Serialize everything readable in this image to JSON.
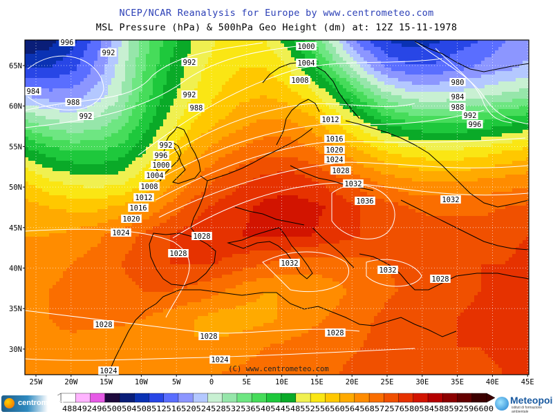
{
  "header": {
    "title": "NCEP/NCAR Reanalysis for Europe by www.centrometeo.com",
    "subtitle": "MSL Pressure (hPa) & 500hPa Geo Height (dm) at: 12Z 15-11-1978"
  },
  "map": {
    "lat_labels": [
      "65N",
      "60N",
      "55N",
      "50N",
      "45N",
      "40N",
      "35N",
      "30N"
    ],
    "lon_labels": [
      "25W",
      "20W",
      "15W",
      "10W",
      "5W",
      "0",
      "5E",
      "10E",
      "15E",
      "20E",
      "25E",
      "30E",
      "35E",
      "40E",
      "45E"
    ],
    "copyright": "(C) www.centrometeo.com",
    "isobar_labels": [
      "996",
      "992",
      "992",
      "984",
      "988",
      "992",
      "992",
      "988",
      "1000",
      "1004",
      "1008",
      "980",
      "984",
      "988",
      "992",
      "996",
      "1012",
      "992",
      "996",
      "1000",
      "1004",
      "1016",
      "1020",
      "1024",
      "1028",
      "1008",
      "1012",
      "1016",
      "1020",
      "1024",
      "1032",
      "1036",
      "1028",
      "1028",
      "1032",
      "1032",
      "1032",
      "1028",
      "1028",
      "1028",
      "1028",
      "1024",
      "1024"
    ],
    "colorbar_labels": [
      "488",
      "492",
      "496",
      "500",
      "504",
      "508",
      "512",
      "516",
      "520",
      "524",
      "528",
      "532",
      "536",
      "540",
      "544",
      "548",
      "552",
      "556",
      "560",
      "564",
      "568",
      "572",
      "576",
      "580",
      "584",
      "588",
      "592",
      "596",
      "600"
    ],
    "colorbar_colors": [
      "#ffffff",
      "#ffb4ff",
      "#e65ae6",
      "#1e0a3c",
      "#0a1e78",
      "#0a32b4",
      "#2846e6",
      "#5a6eff",
      "#8c96ff",
      "#b4c8ff",
      "#c8f0d2",
      "#96e6aa",
      "#6ee682",
      "#46dc5a",
      "#1ec83c",
      "#0aaa28",
      "#f0f050",
      "#fae614",
      "#ffc800",
      "#ffaa00",
      "#ff8c00",
      "#fa6e00",
      "#f05000",
      "#e63200",
      "#d21400",
      "#b40000",
      "#8c0000",
      "#640000",
      "#3c0000"
    ],
    "heights_dm": [
      [
        504,
        506,
        511,
        518,
        528,
        538,
        546,
        552,
        556,
        558,
        556,
        550,
        540,
        528,
        518,
        512,
        510,
        511,
        514,
        516,
        520,
        522
      ],
      [
        512,
        512,
        515,
        521,
        530,
        540,
        548,
        554,
        558,
        560,
        560,
        556,
        548,
        538,
        528,
        520,
        517,
        517,
        519,
        521,
        523,
        525
      ],
      [
        524,
        522,
        522,
        526,
        532,
        542,
        550,
        556,
        560,
        563,
        564,
        562,
        558,
        550,
        542,
        534,
        530,
        529,
        530,
        531,
        533,
        535
      ],
      [
        538,
        534,
        532,
        534,
        538,
        546,
        554,
        560,
        564,
        567,
        569,
        569,
        566,
        560,
        554,
        548,
        545,
        544,
        544,
        545,
        547,
        549
      ],
      [
        550,
        546,
        544,
        544,
        546,
        552,
        560,
        566,
        570,
        573,
        575,
        575,
        573,
        569,
        564,
        560,
        558,
        557,
        557,
        558,
        560,
        562
      ],
      [
        560,
        556,
        554,
        553,
        554,
        559,
        566,
        572,
        576,
        579,
        581,
        582,
        580,
        577,
        573,
        570,
        568,
        567,
        567,
        568,
        569,
        570
      ],
      [
        566,
        564,
        563,
        563,
        565,
        568,
        573,
        578,
        581,
        583,
        585,
        586,
        585,
        583,
        580,
        578,
        576,
        575,
        575,
        575,
        576,
        577
      ],
      [
        568,
        568,
        569,
        571,
        574,
        577,
        580,
        582,
        583,
        584,
        585,
        585,
        584,
        582,
        580,
        579,
        578,
        578,
        578,
        578,
        579,
        580
      ],
      [
        570,
        571,
        572,
        574,
        576,
        578,
        580,
        580,
        580,
        578,
        576,
        575,
        574,
        574,
        575,
        576,
        577,
        578,
        579,
        580,
        580,
        581
      ],
      [
        571,
        572,
        573,
        574,
        575,
        576,
        576,
        575,
        573,
        570,
        568,
        568,
        569,
        571,
        573,
        575,
        577,
        578,
        579,
        580,
        581,
        582
      ],
      [
        572,
        572,
        573,
        573,
        573,
        572,
        570,
        568,
        566,
        566,
        567,
        569,
        571,
        573,
        575,
        577,
        578,
        579,
        580,
        581,
        582,
        582
      ],
      [
        572,
        571,
        571,
        570,
        569,
        568,
        568,
        568,
        569,
        570,
        572,
        573,
        574,
        575,
        576,
        577,
        578,
        579,
        580,
        580,
        581,
        582
      ],
      [
        572,
        571,
        570,
        569,
        569,
        569,
        570,
        571,
        572,
        573,
        574,
        575,
        576,
        576,
        577,
        577,
        578,
        578,
        579,
        579,
        580,
        580
      ]
    ]
  }
}
